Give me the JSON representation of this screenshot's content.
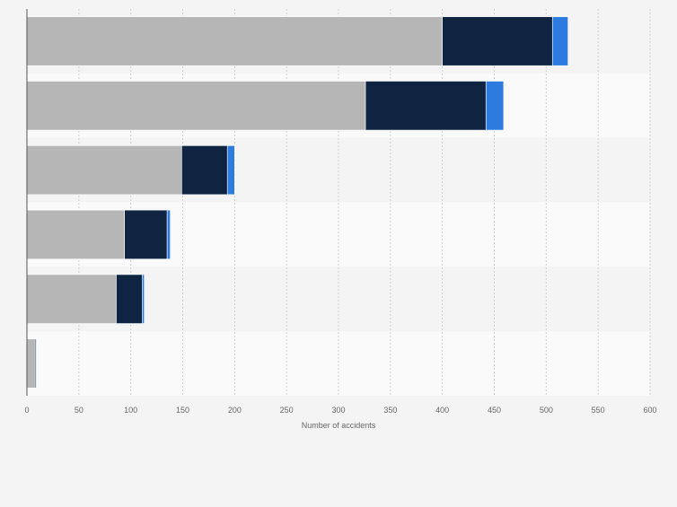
{
  "chart_data": {
    "type": "bar",
    "orientation": "horizontal",
    "stacked": true,
    "title": "",
    "xlabel": "Number of accidents",
    "ylabel": "",
    "xlim": [
      0,
      600
    ],
    "x_ticks": [
      0,
      50,
      100,
      150,
      200,
      250,
      300,
      350,
      400,
      450,
      500,
      550,
      600
    ],
    "grid": true,
    "categories": [
      "",
      "",
      "",
      "",
      "",
      ""
    ],
    "series": [
      {
        "color": "#b6b6b6",
        "values": [
          400,
          326,
          149,
          94,
          86,
          8
        ]
      },
      {
        "color": "#0e2440",
        "values": [
          106,
          116,
          44,
          41,
          25,
          1
        ]
      },
      {
        "color": "#2e7be0",
        "values": [
          15,
          17,
          7,
          3,
          2,
          0
        ]
      }
    ],
    "band_colors": [
      "#f4f4f4",
      "#fafafa"
    ],
    "gridline_color": "#d0d0d0"
  }
}
